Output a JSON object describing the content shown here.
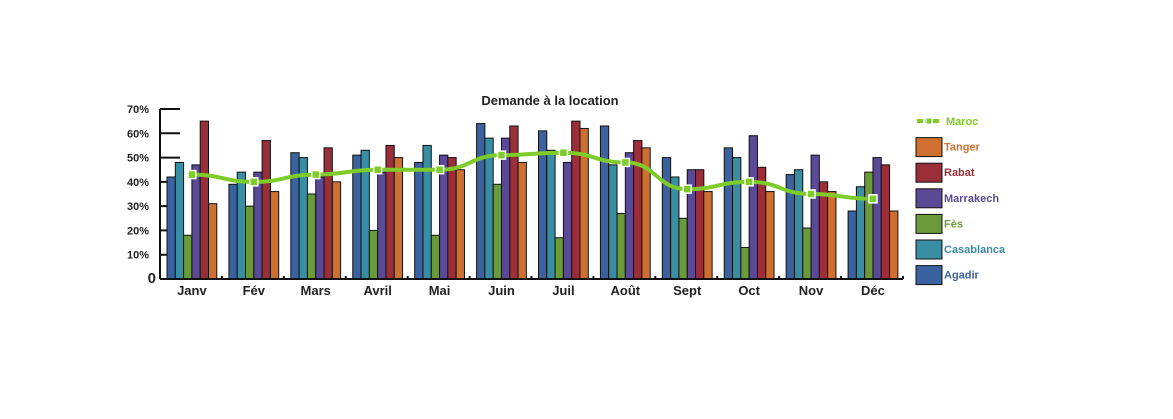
{
  "chart_data": {
    "type": "bar",
    "title": "Demande à la location",
    "xlabel": "",
    "ylabel": "",
    "ylim": [
      0,
      70
    ],
    "yticks": [
      "0",
      "10%",
      "20%",
      "30%",
      "40%",
      "50%",
      "60%",
      "70%"
    ],
    "categories": [
      "Janv",
      "Fév",
      "Mars",
      "Avril",
      "Mai",
      "Juin",
      "Juil",
      "Août",
      "Sept",
      "Oct",
      "Nov",
      "Déc"
    ],
    "series": [
      {
        "name": "Agadir",
        "color": "#3a62a0",
        "values": [
          42,
          39,
          52,
          51,
          48,
          64,
          61,
          63,
          50,
          54,
          43,
          28
        ]
      },
      {
        "name": "Casablanca",
        "color": "#3a8ea3",
        "values": [
          48,
          44,
          50,
          53,
          55,
          58,
          53,
          47,
          42,
          50,
          45,
          38
        ]
      },
      {
        "name": "Fès",
        "color": "#6a9a3a",
        "values": [
          18,
          30,
          35,
          20,
          18,
          39,
          17,
          27,
          25,
          13,
          21,
          44
        ]
      },
      {
        "name": "Marrakech",
        "color": "#5a4a95",
        "values": [
          47,
          44,
          42,
          44,
          51,
          58,
          48,
          52,
          45,
          59,
          51,
          50
        ]
      },
      {
        "name": "Rabat",
        "color": "#9a2f3a",
        "values": [
          65,
          57,
          54,
          55,
          50,
          63,
          65,
          57,
          45,
          46,
          40,
          47
        ]
      },
      {
        "name": "Tanger",
        "color": "#d07030",
        "values": [
          31,
          36,
          40,
          50,
          45,
          48,
          62,
          54,
          36,
          36,
          36,
          28
        ]
      }
    ],
    "line_series": {
      "name": "Maroc",
      "color": "#7dcc2a",
      "values": [
        43,
        40,
        43,
        45,
        45,
        51,
        52,
        48,
        37,
        40,
        35,
        33
      ]
    },
    "legend": {
      "placement": "right",
      "order": [
        "Maroc",
        "Tanger",
        "Rabat",
        "Marrakech",
        "Fès",
        "Casablanca",
        "Agadir"
      ]
    },
    "grid": false
  }
}
